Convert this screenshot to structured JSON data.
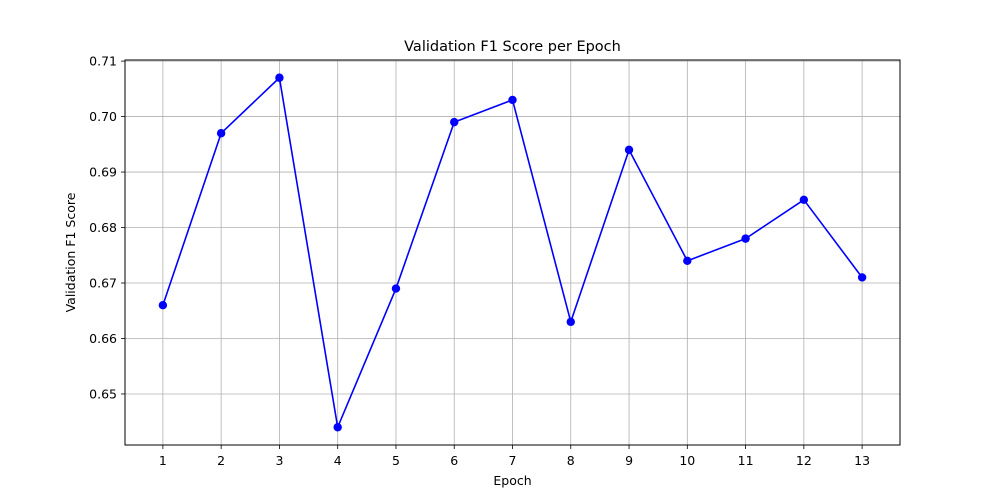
{
  "chart_data": {
    "type": "line",
    "title": "Validation F1 Score per Epoch",
    "xlabel": "Epoch",
    "ylabel": "Validation F1 Score",
    "x": [
      1,
      2,
      3,
      4,
      5,
      6,
      7,
      8,
      9,
      10,
      11,
      12,
      13
    ],
    "series": [
      {
        "values": [
          0.666,
          0.697,
          0.707,
          0.644,
          0.669,
          0.699,
          0.703,
          0.663,
          0.694,
          0.674,
          0.678,
          0.685,
          0.671
        ],
        "color": "#0000ff",
        "marker": "circle"
      }
    ],
    "xticks": [
      "1",
      "2",
      "3",
      "4",
      "5",
      "6",
      "7",
      "8",
      "9",
      "10",
      "11",
      "12",
      "13"
    ],
    "yticks": [
      0.65,
      0.66,
      0.67,
      0.68,
      0.69,
      0.7,
      0.71
    ],
    "ytick_labels": [
      "0.65",
      "0.66",
      "0.67",
      "0.68",
      "0.69",
      "0.70",
      "0.71"
    ],
    "xlim": [
      0.35,
      13.65
    ],
    "ylim": [
      0.6408,
      0.7102
    ],
    "grid": true,
    "grid_color": "#b0b0b0",
    "background": "#ffffff"
  }
}
